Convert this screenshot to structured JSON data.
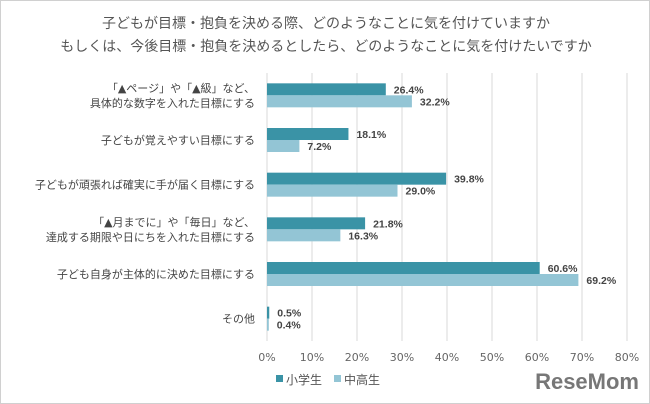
{
  "chart_data": {
    "type": "bar",
    "orientation": "horizontal",
    "title": [
      "子どもが目標・抱負を決める際、どのようなことに気を付けていますか",
      "もしくは、今後目標・抱負を決めるとしたら、どのようなことに気を付けたいですか"
    ],
    "categories": [
      [
        "「▲ページ」や「▲級」など、",
        "具体的な数字を入れた目標にする"
      ],
      [
        "子どもが覚えやすい目標にする"
      ],
      [
        "子どもが頑張れば確実に手が届く目標にする"
      ],
      [
        "「▲月までに」や「毎日」など、",
        "達成する期限や日にちを入れた目標にする"
      ],
      [
        "子ども自身が主体的に決めた目標にする"
      ],
      [
        "その他"
      ]
    ],
    "series": [
      {
        "name": "小学生",
        "color": "#3a93a6",
        "values": [
          26.4,
          18.1,
          39.8,
          21.8,
          60.6,
          0.5
        ]
      },
      {
        "name": "中高生",
        "color": "#93c5d5",
        "values": [
          32.2,
          7.2,
          29.0,
          16.3,
          69.2,
          0.4
        ]
      }
    ],
    "xlim": [
      0,
      80
    ],
    "xticks": [
      "0%",
      "10%",
      "20%",
      "30%",
      "40%",
      "50%",
      "60%",
      "70%",
      "80%"
    ],
    "grid": true,
    "legend_position": "bottom-left"
  },
  "logo": "ReseMom"
}
